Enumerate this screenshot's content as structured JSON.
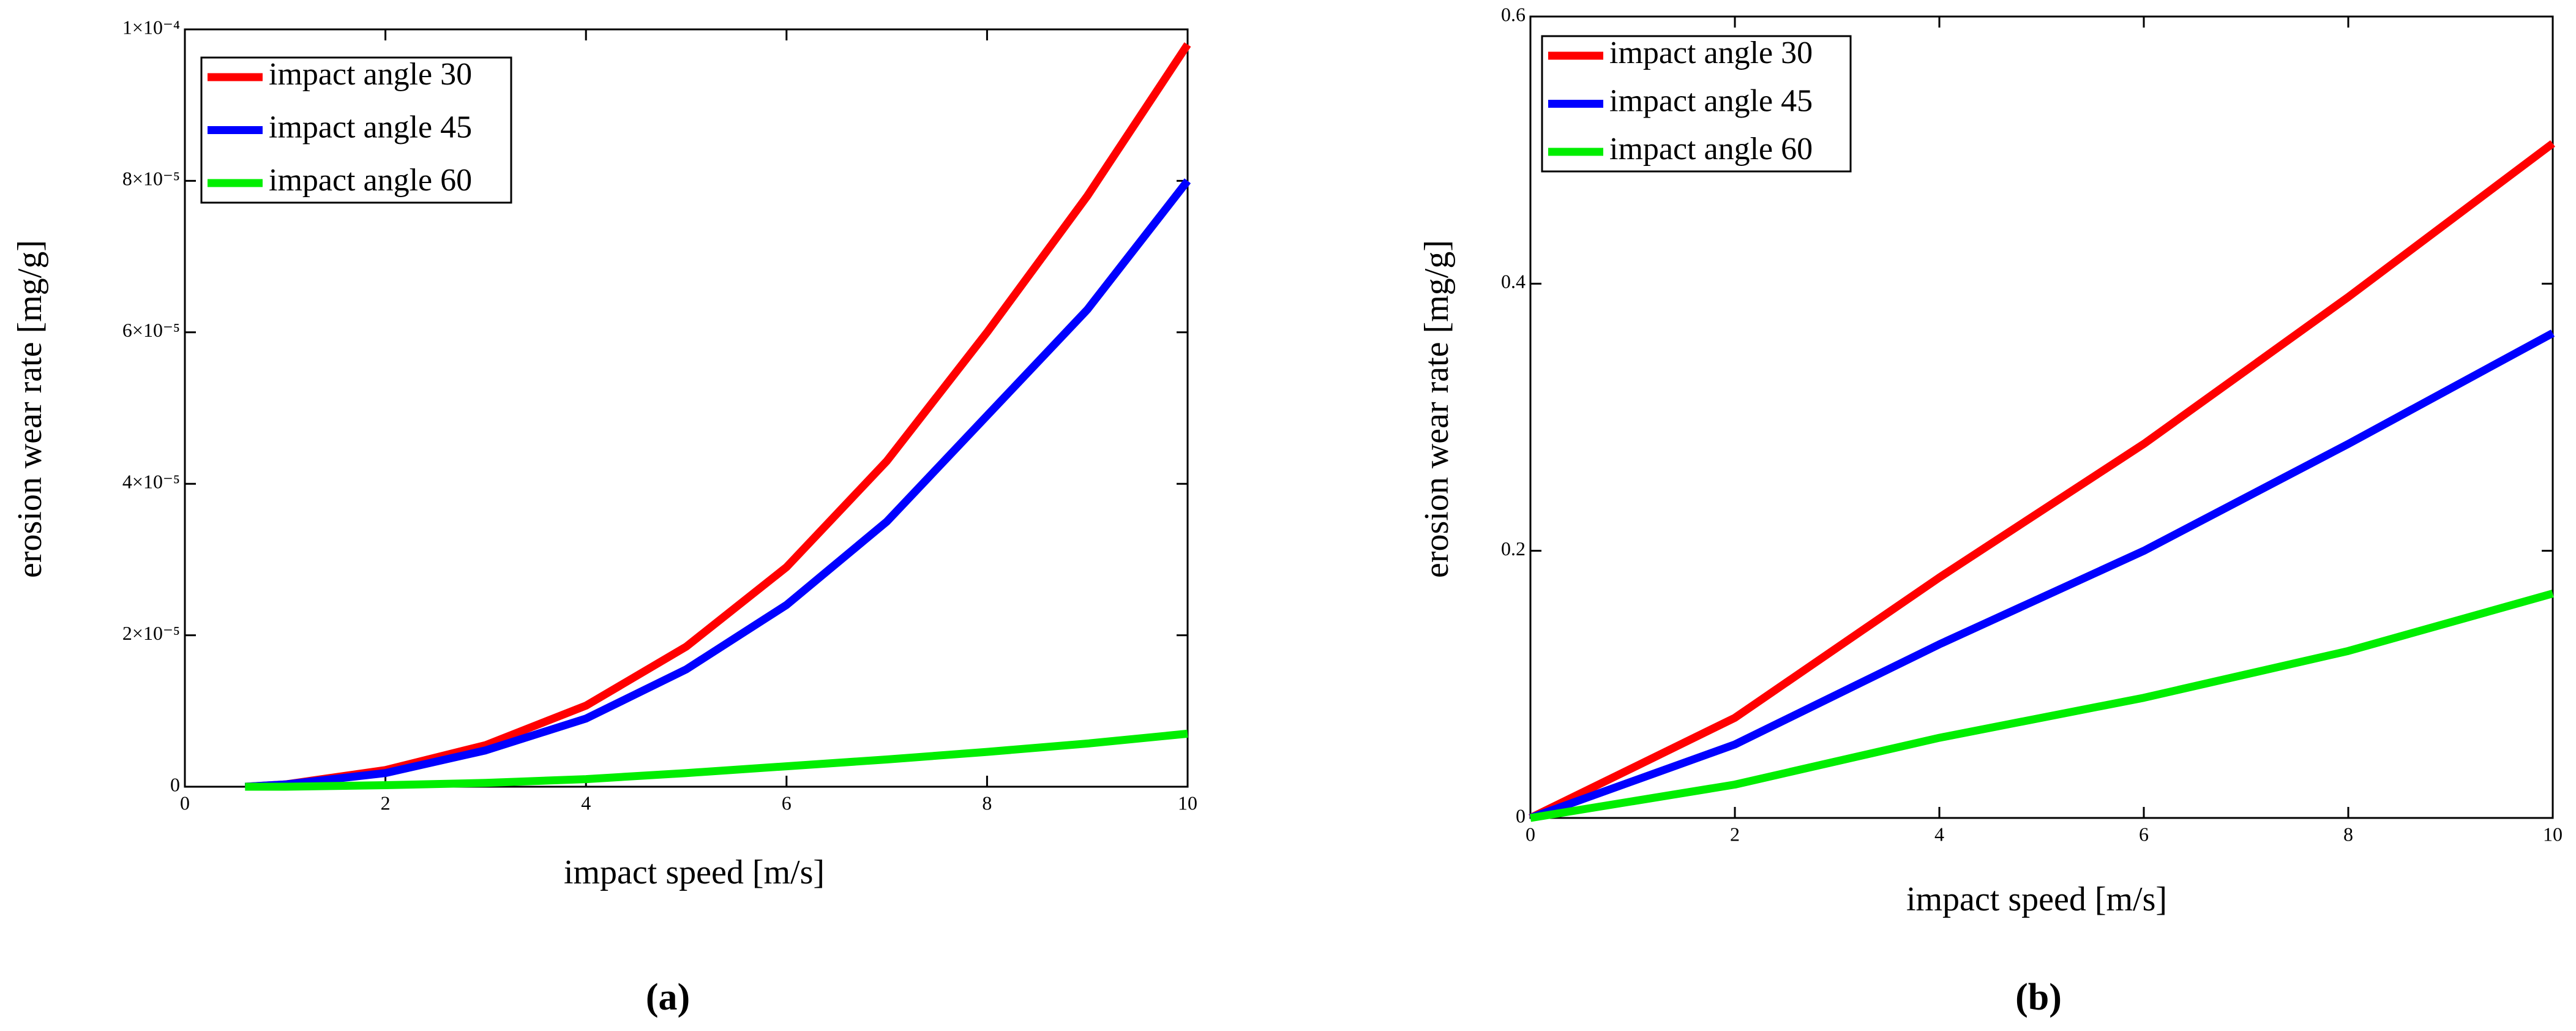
{
  "chart_data": [
    {
      "type": "line",
      "caption": "(a)",
      "xlabel": "impact speed [m/s]",
      "ylabel": "erosion wear rate [mg/g]",
      "xlim": [
        0,
        10
      ],
      "xticks": [
        0,
        2,
        4,
        6,
        8,
        10
      ],
      "ylim": [
        0,
        0.0001
      ],
      "yticks": [
        0,
        {
          "value": 2e-05,
          "label": "2×10⁻⁵"
        },
        {
          "value": 4e-05,
          "label": "4×10⁻⁵"
        },
        {
          "value": 6e-05,
          "label": "6×10⁻⁵"
        },
        {
          "value": 8e-05,
          "label": "8×10⁻⁵"
        },
        {
          "value": 0.0001,
          "label": "1×10⁻⁴"
        }
      ],
      "legend": "upper left",
      "x": [
        0.6,
        1,
        2,
        3,
        4,
        5,
        6,
        7,
        8,
        9,
        10
      ],
      "series": [
        {
          "name": "impact angle 30",
          "color": "#ff0000",
          "values": [
            0,
            3e-07,
            2.2e-06,
            5.5e-06,
            1.07e-05,
            1.85e-05,
            2.9e-05,
            4.3e-05,
            6e-05,
            7.8e-05,
            9.8e-05
          ]
        },
        {
          "name": "impact angle 45",
          "color": "#0000ff",
          "values": [
            0,
            3e-07,
            1.8e-06,
            4.8e-06,
            9e-06,
            1.55e-05,
            2.4e-05,
            3.5e-05,
            4.9e-05,
            6.3e-05,
            8e-05
          ]
        },
        {
          "name": "impact angle 60",
          "color": "#00ee00",
          "values": [
            0,
            0,
            2e-07,
            5e-07,
            1e-06,
            1.8e-06,
            2.7e-06,
            3.6e-06,
            4.6e-06,
            5.7e-06,
            7e-06
          ]
        }
      ]
    },
    {
      "type": "line",
      "caption": "(b)",
      "xlabel": "impact speed [m/s]",
      "ylabel": "erosion wear rate [mg/g]",
      "xlim": [
        0,
        10
      ],
      "xticks": [
        0,
        2,
        4,
        6,
        8,
        10
      ],
      "ylim": [
        0,
        0.6
      ],
      "yticks": [
        0,
        0.2,
        0.4,
        0.6
      ],
      "legend": "upper left",
      "x": [
        0,
        2,
        4,
        6,
        8,
        10
      ],
      "series": [
        {
          "name": "impact angle 30",
          "color": "#ff0000",
          "values": [
            0,
            0.075,
            0.18,
            0.28,
            0.39,
            0.505
          ]
        },
        {
          "name": "impact angle 45",
          "color": "#0000ff",
          "values": [
            0,
            0.055,
            0.13,
            0.2,
            0.28,
            0.363
          ]
        },
        {
          "name": "impact angle 60",
          "color": "#00ee00",
          "values": [
            0,
            0.025,
            0.06,
            0.09,
            0.125,
            0.168
          ]
        }
      ]
    }
  ]
}
